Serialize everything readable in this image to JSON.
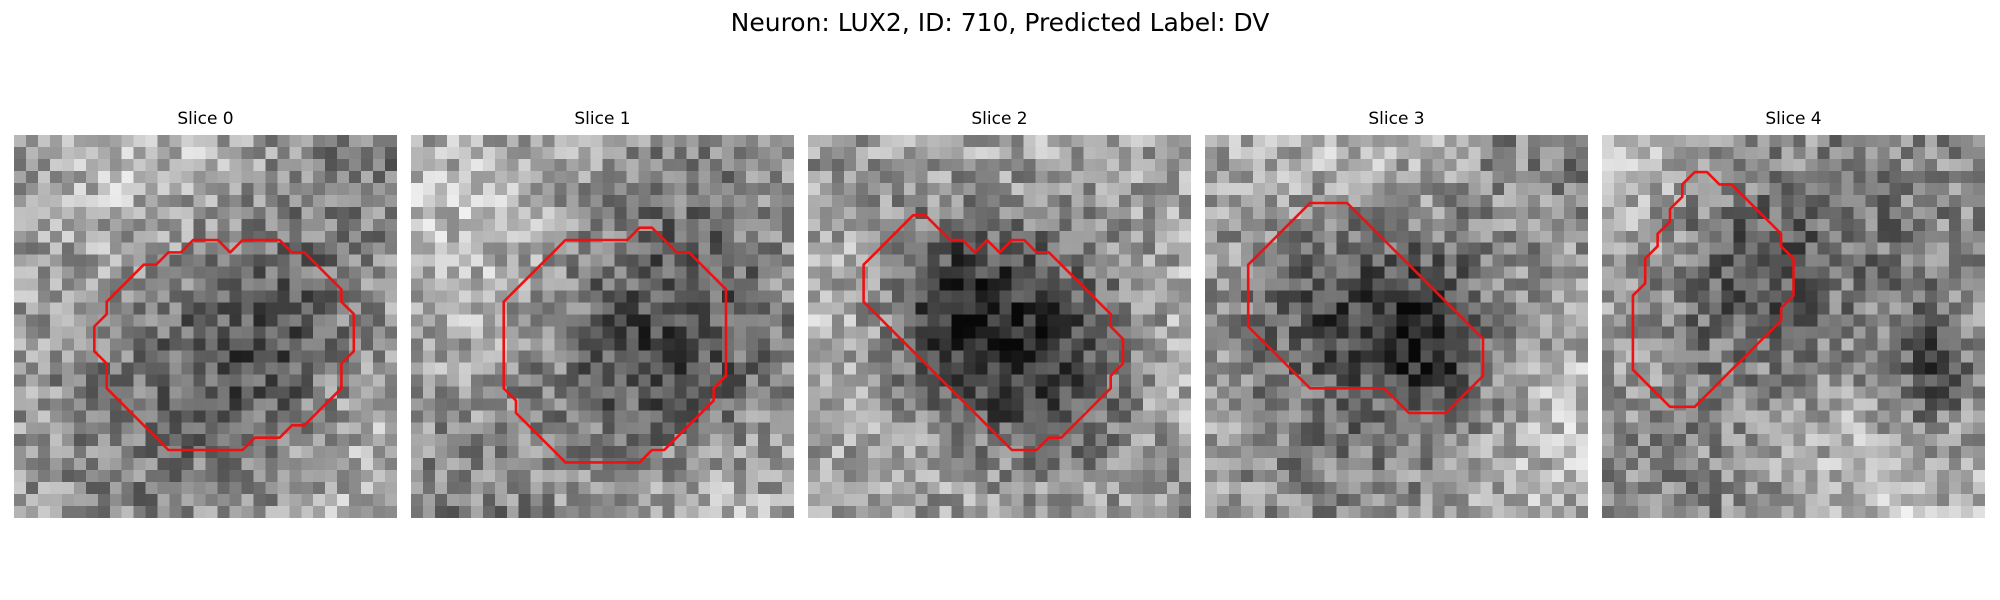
{
  "figure": {
    "title": "Neuron: LUX2, ID: 710, Predicted Label: DV"
  },
  "colors": {
    "contour": "#ee1111",
    "background": "#ffffff"
  },
  "slices": [
    {
      "title": "Slice 0",
      "image_description": "grayscale noisy micrograph patch with a round darker cell body outlined in red, centered lower-right",
      "blobs": [
        [
          0.66,
          0.55,
          0.34,
          0.38
        ]
      ],
      "contour": [
        [
          15,
          4
        ],
        [
          16,
          3
        ],
        [
          19,
          3
        ],
        [
          20,
          4
        ],
        [
          21,
          4
        ],
        [
          22,
          5
        ],
        [
          23,
          6
        ],
        [
          24,
          7
        ],
        [
          24,
          8
        ],
        [
          25,
          9
        ],
        [
          25,
          10
        ],
        [
          25,
          11
        ],
        [
          25,
          12
        ],
        [
          24,
          13
        ],
        [
          24,
          14
        ],
        [
          24,
          15
        ],
        [
          23,
          16
        ],
        [
          22,
          17
        ],
        [
          21,
          18
        ],
        [
          20,
          18
        ],
        [
          19,
          19
        ],
        [
          17,
          19
        ],
        [
          16,
          20
        ],
        [
          13,
          20
        ],
        [
          11,
          20
        ],
        [
          10,
          20
        ],
        [
          9,
          19
        ],
        [
          8,
          18
        ],
        [
          7,
          17
        ],
        [
          6,
          16
        ],
        [
          5,
          15
        ],
        [
          5,
          14
        ],
        [
          5,
          13
        ],
        [
          4,
          12
        ],
        [
          4,
          11
        ],
        [
          4,
          10
        ],
        [
          5,
          9
        ],
        [
          5,
          8
        ],
        [
          6,
          7
        ],
        [
          7,
          6
        ],
        [
          8,
          5
        ],
        [
          9,
          5
        ],
        [
          10,
          4
        ],
        [
          11,
          4
        ],
        [
          12,
          3
        ],
        [
          14,
          3
        ]
      ]
    },
    {
      "title": "Slice 1",
      "image_description": "grayscale noisy micrograph patch with a large round cell body outlined in red, lower-right",
      "blobs": [
        [
          0.65,
          0.6,
          0.36,
          0.38
        ]
      ],
      "contour": [
        [
          11,
          3
        ],
        [
          15,
          3
        ],
        [
          16,
          2
        ],
        [
          17,
          2
        ],
        [
          18,
          3
        ],
        [
          19,
          4
        ],
        [
          20,
          4
        ],
        [
          21,
          5
        ],
        [
          22,
          6
        ],
        [
          23,
          7
        ],
        [
          23,
          8
        ],
        [
          23,
          9
        ],
        [
          23,
          10
        ],
        [
          23,
          11
        ],
        [
          23,
          12
        ],
        [
          23,
          13
        ],
        [
          23,
          14
        ],
        [
          22,
          15
        ],
        [
          22,
          16
        ],
        [
          21,
          17
        ],
        [
          20,
          18
        ],
        [
          19,
          19
        ],
        [
          18,
          20
        ],
        [
          17,
          20
        ],
        [
          16,
          21
        ],
        [
          15,
          21
        ],
        [
          13,
          21
        ],
        [
          11,
          21
        ],
        [
          10,
          21
        ],
        [
          9,
          20
        ],
        [
          8,
          19
        ],
        [
          7,
          18
        ],
        [
          6,
          17
        ],
        [
          6,
          16
        ],
        [
          5,
          15
        ],
        [
          5,
          14
        ],
        [
          5,
          13
        ],
        [
          5,
          11
        ],
        [
          5,
          9
        ],
        [
          5,
          8
        ],
        [
          6,
          7
        ],
        [
          7,
          6
        ],
        [
          8,
          5
        ],
        [
          9,
          4
        ],
        [
          10,
          3
        ]
      ]
    },
    {
      "title": "Slice 2",
      "image_description": "grayscale noisy micrograph patch with two adjoining dark lobes outlined in red, forming an irregular shape",
      "blobs": [
        [
          0.38,
          0.45,
          0.22,
          0.28
        ],
        [
          0.62,
          0.6,
          0.26,
          0.32
        ]
      ],
      "contour": [
        [
          6,
          0
        ],
        [
          7,
          0
        ],
        [
          8,
          1
        ],
        [
          9,
          2
        ],
        [
          10,
          2
        ],
        [
          11,
          3
        ],
        [
          12,
          2
        ],
        [
          13,
          3
        ],
        [
          14,
          2
        ],
        [
          15,
          2
        ],
        [
          16,
          3
        ],
        [
          17,
          3
        ],
        [
          18,
          4
        ],
        [
          19,
          5
        ],
        [
          20,
          6
        ],
        [
          21,
          7
        ],
        [
          22,
          8
        ],
        [
          22,
          9
        ],
        [
          23,
          10
        ],
        [
          23,
          11
        ],
        [
          23,
          12
        ],
        [
          22,
          13
        ],
        [
          22,
          14
        ],
        [
          21,
          15
        ],
        [
          20,
          16
        ],
        [
          19,
          17
        ],
        [
          18,
          18
        ],
        [
          17,
          18
        ],
        [
          16,
          19
        ],
        [
          15,
          19
        ],
        [
          14,
          19
        ],
        [
          13,
          18
        ],
        [
          12,
          17
        ],
        [
          11,
          16
        ],
        [
          10,
          15
        ],
        [
          9,
          14
        ],
        [
          8,
          13
        ],
        [
          7,
          12
        ],
        [
          6,
          11
        ],
        [
          5,
          10
        ],
        [
          4,
          9
        ],
        [
          3,
          8
        ],
        [
          2,
          7
        ],
        [
          2,
          6
        ],
        [
          2,
          5
        ],
        [
          2,
          4
        ],
        [
          3,
          3
        ],
        [
          4,
          2
        ],
        [
          5,
          1
        ]
      ]
    },
    {
      "title": "Slice 3",
      "image_description": "grayscale noisy micrograph patch with an elongated dark cell body outlined in red, upper-left to center",
      "blobs": [
        [
          0.42,
          0.42,
          0.36,
          0.3
        ],
        [
          0.62,
          0.58,
          0.2,
          0.22
        ]
      ],
      "contour": [
        [
          5,
          1
        ],
        [
          6,
          0
        ],
        [
          7,
          0
        ],
        [
          8,
          0
        ],
        [
          9,
          0
        ],
        [
          10,
          1
        ],
        [
          11,
          2
        ],
        [
          12,
          3
        ],
        [
          13,
          4
        ],
        [
          14,
          5
        ],
        [
          15,
          6
        ],
        [
          16,
          7
        ],
        [
          17,
          8
        ],
        [
          18,
          9
        ],
        [
          19,
          10
        ],
        [
          20,
          11
        ],
        [
          20,
          12
        ],
        [
          20,
          13
        ],
        [
          20,
          14
        ],
        [
          19,
          15
        ],
        [
          18,
          16
        ],
        [
          17,
          17
        ],
        [
          15,
          17
        ],
        [
          14,
          17
        ],
        [
          13,
          16
        ],
        [
          12,
          15
        ],
        [
          10,
          15
        ],
        [
          8,
          15
        ],
        [
          7,
          15
        ],
        [
          6,
          15
        ],
        [
          5,
          14
        ],
        [
          4,
          13
        ],
        [
          3,
          12
        ],
        [
          2,
          11
        ],
        [
          1,
          10
        ],
        [
          1,
          9
        ],
        [
          1,
          8
        ],
        [
          1,
          7
        ],
        [
          1,
          6
        ],
        [
          1,
          5
        ],
        [
          2,
          4
        ],
        [
          3,
          3
        ],
        [
          4,
          2
        ]
      ]
    },
    {
      "title": "Slice 4",
      "image_description": "grayscale noisy micrograph patch with a dark round cell body outlined in red in the upper-left, bright band below",
      "blobs": [
        [
          0.36,
          0.36,
          0.32,
          0.34
        ],
        [
          0.86,
          0.62,
          0.14,
          0.2
        ]
      ],
      "contour": [
        [
          5,
          0
        ],
        [
          6,
          0
        ],
        [
          7,
          1
        ],
        [
          8,
          1
        ],
        [
          9,
          2
        ],
        [
          10,
          3
        ],
        [
          11,
          4
        ],
        [
          12,
          5
        ],
        [
          12,
          6
        ],
        [
          13,
          7
        ],
        [
          13,
          8
        ],
        [
          13,
          9
        ],
        [
          13,
          10
        ],
        [
          12,
          11
        ],
        [
          12,
          12
        ],
        [
          11,
          13
        ],
        [
          10,
          14
        ],
        [
          9,
          15
        ],
        [
          8,
          16
        ],
        [
          7,
          17
        ],
        [
          6,
          18
        ],
        [
          5,
          19
        ],
        [
          4,
          19
        ],
        [
          3,
          19
        ],
        [
          2,
          18
        ],
        [
          1,
          17
        ],
        [
          0,
          16
        ],
        [
          0,
          15
        ],
        [
          0,
          14
        ],
        [
          0,
          13
        ],
        [
          0,
          12
        ],
        [
          0,
          11
        ],
        [
          0,
          10
        ],
        [
          1,
          9
        ],
        [
          1,
          8
        ],
        [
          1,
          7
        ],
        [
          2,
          6
        ],
        [
          2,
          5
        ],
        [
          3,
          4
        ],
        [
          3,
          3
        ],
        [
          4,
          2
        ],
        [
          4,
          1
        ]
      ]
    }
  ]
}
